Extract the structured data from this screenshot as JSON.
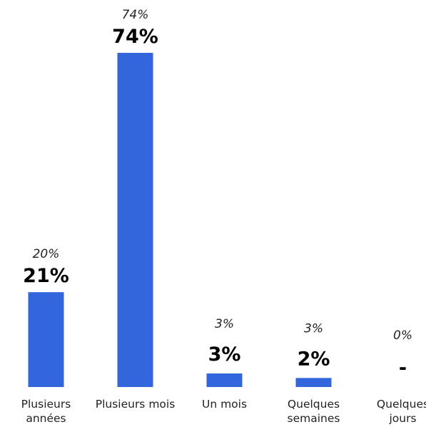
{
  "chart_data": {
    "type": "bar",
    "categories": [
      [
        "Plusieurs",
        "années"
      ],
      [
        "Plusieurs mois"
      ],
      [
        "Un mois"
      ],
      [
        "Quelques",
        "semaines"
      ],
      [
        "Quelques",
        "jours"
      ]
    ],
    "values": [
      21,
      74,
      3,
      2,
      0
    ],
    "value_labels": [
      "21%",
      "74%",
      "3%",
      "2%",
      "-"
    ],
    "previous_values": [
      20,
      74,
      3,
      3,
      0
    ],
    "previous_labels": [
      "20%",
      "74%",
      "3%",
      "3%",
      "0%"
    ],
    "title": "",
    "xlabel": "",
    "ylabel": "",
    "ylim": [
      0,
      74
    ],
    "grid": false,
    "legend": "none",
    "bar_color": "#3366dd"
  }
}
